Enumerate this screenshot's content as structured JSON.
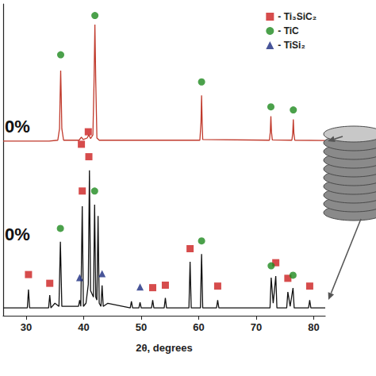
{
  "chart_data": {
    "type": "line",
    "x_label": "2θ, degrees",
    "xlim": [
      26,
      82
    ],
    "xticks": [
      30,
      40,
      50,
      60,
      70,
      80
    ],
    "ylim": [
      0,
      100
    ],
    "grid": false,
    "tick_labels": "x",
    "legend": "upper right",
    "annotations": [
      "0%",
      "0%"
    ],
    "series": [
      {
        "type": "line",
        "color": "#c0392b",
        "x": [
          26,
          34,
          35.5,
          35.8,
          35.9,
          36.0,
          36.1,
          36.2,
          36.5,
          39.2,
          39.6,
          39.9,
          40.6,
          40.9,
          41.2,
          41.6,
          41.8,
          41.95,
          42.1,
          42.3,
          42.7,
          60.2,
          60.4,
          60.5,
          60.6,
          60.7,
          72.3,
          72.45,
          72.55,
          72.65,
          72.8,
          76.2,
          76.35,
          76.45,
          76.55,
          76.7,
          82
        ],
        "values": [
          56,
          56,
          56.3,
          60,
          70,
          78.6,
          70,
          60,
          56.3,
          56.3,
          57.3,
          56.5,
          57,
          58,
          56.8,
          58,
          75,
          93.4,
          75,
          57,
          56.3,
          56.3,
          62,
          70.7,
          62,
          56.5,
          56.3,
          59,
          64,
          59,
          56.4,
          56.3,
          58.5,
          63,
          58.5,
          56.3,
          56.2
        ]
      },
      {
        "type": "line",
        "color": "#111111",
        "x": [
          26,
          30.2,
          30.4,
          30.6,
          33.9,
          34.1,
          34.3,
          35.0,
          35.7,
          35.95,
          36.2,
          39.1,
          39.3,
          39.5,
          39.75,
          39.95,
          40.4,
          40.8,
          41.0,
          41.2,
          41.7,
          41.9,
          42.1,
          42.3,
          42.5,
          42.7,
          43.0,
          43.2,
          43.4,
          44.2,
          48.1,
          48.3,
          48.5,
          49.6,
          49.8,
          50.0,
          51.8,
          52.0,
          52.2,
          54.0,
          54.2,
          54.4,
          58.3,
          58.5,
          58.7,
          60.3,
          60.5,
          60.7,
          63.1,
          63.3,
          63.5,
          72.4,
          72.6,
          72.95,
          73.4,
          73.6,
          75.3,
          75.5,
          75.9,
          76.4,
          76.6,
          79.1,
          79.3,
          79.5,
          82
        ],
        "values": [
          2.5,
          2.5,
          8.4,
          2.5,
          2.5,
          6.6,
          2.5,
          4,
          3,
          23.7,
          3,
          3,
          5,
          3,
          35.1,
          3,
          4,
          10,
          46.6,
          8,
          6,
          35.6,
          6,
          5,
          32,
          4,
          3,
          9.7,
          3,
          4,
          2.5,
          4.6,
          2.5,
          2.5,
          4.3,
          2.5,
          2.5,
          5,
          2.5,
          2.5,
          5.7,
          2.5,
          2.5,
          17.3,
          2.5,
          2.5,
          19.8,
          2.5,
          2.5,
          5,
          2.5,
          2.5,
          12.2,
          4,
          12.7,
          2.5,
          2.5,
          7.6,
          3,
          8.9,
          2.5,
          2.5,
          5,
          2.5,
          2.5
        ]
      },
      {
        "type": "scatter",
        "name": "- Ti₃SiC₂",
        "color": "#cc1f1f",
        "marker": "square",
        "x": [
          39.6,
          40.8,
          30.4,
          34.1,
          39.75,
          40.9,
          52.0,
          54.2,
          58.5,
          63.3,
          73.4,
          75.5,
          79.3
        ],
        "values": [
          55,
          59,
          13.2,
          10.4,
          40,
          51,
          9,
          9.8,
          21.5,
          9.5,
          17,
          12,
          9.5
        ]
      },
      {
        "type": "scatter",
        "name": "- TiC",
        "color": "#1e8a1e",
        "marker": "circle",
        "x": [
          36.0,
          41.95,
          60.5,
          72.55,
          76.45,
          35.95,
          41.9,
          60.5,
          72.6,
          76.4
        ],
        "values": [
          83.7,
          96.3,
          75,
          67,
          66,
          28,
          40,
          24,
          16,
          13
        ]
      },
      {
        "type": "scatter",
        "name": "- TiSi₂",
        "color": "#1a2a80",
        "marker": "triangle",
        "x": [
          39.3,
          43.2,
          49.8
        ],
        "values": [
          12.2,
          13.5,
          9.2
        ]
      }
    ]
  }
}
